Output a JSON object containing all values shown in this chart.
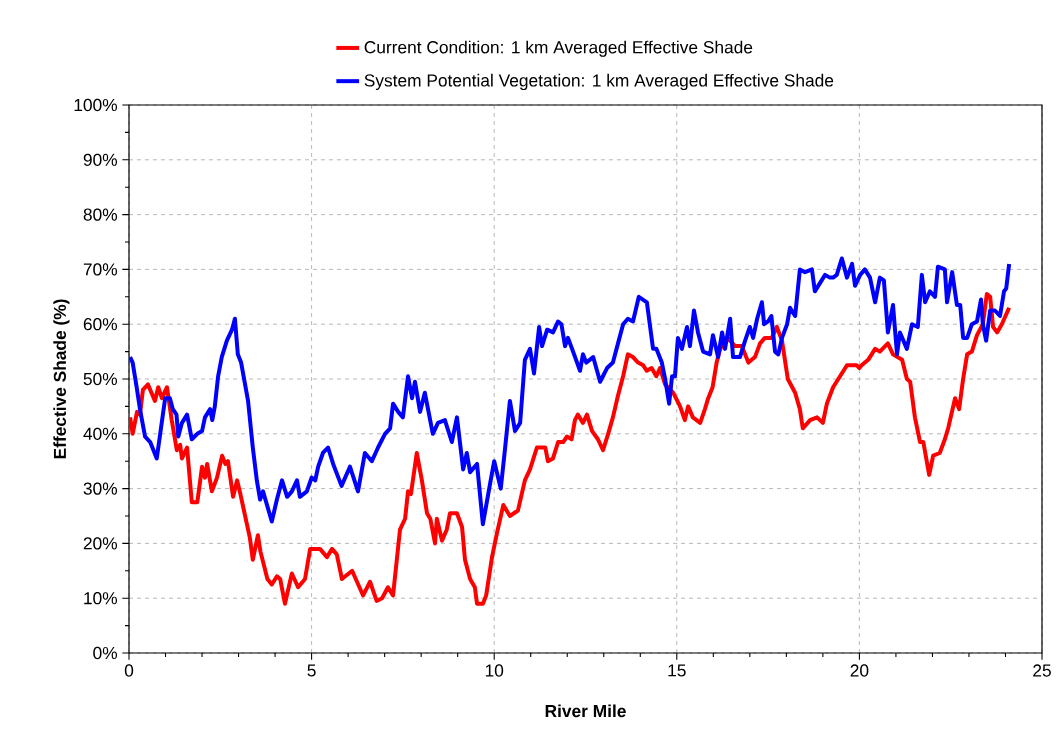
{
  "chart_data": {
    "type": "line",
    "xlabel": "River Mile",
    "ylabel": "Effective Shade (%)",
    "xlim": [
      0,
      25
    ],
    "ylim": [
      0,
      100
    ],
    "xticks": [
      0,
      5,
      10,
      15,
      20,
      25
    ],
    "yticks": [
      {
        "value": 0,
        "label": "0%"
      },
      {
        "value": 10,
        "label": "10%"
      },
      {
        "value": 20,
        "label": "20%"
      },
      {
        "value": 30,
        "label": "30%"
      },
      {
        "value": 40,
        "label": "40%"
      },
      {
        "value": 50,
        "label": "50%"
      },
      {
        "value": 60,
        "label": "60%"
      },
      {
        "value": 70,
        "label": "70%"
      },
      {
        "value": 80,
        "label": "80%"
      },
      {
        "value": 90,
        "label": "90%"
      },
      {
        "value": 100,
        "label": "100%"
      }
    ],
    "grid": true,
    "legend": "top",
    "series": [
      {
        "name": "Current Condition:  1 km Averaged Effective Shade",
        "color": "#ff0000",
        "x": [
          0.03,
          0.1,
          0.22,
          0.3,
          0.38,
          0.52,
          0.71,
          0.8,
          0.9,
          1.04,
          1.17,
          1.31,
          1.4,
          1.45,
          1.59,
          1.72,
          1.87,
          2.0,
          2.08,
          2.14,
          2.27,
          2.41,
          2.55,
          2.64,
          2.71,
          2.85,
          2.96,
          3.05,
          3.18,
          3.31,
          3.39,
          3.53,
          3.6,
          3.79,
          3.91,
          4.05,
          4.14,
          4.27,
          4.46,
          4.63,
          4.82,
          4.96,
          5.23,
          5.42,
          5.56,
          5.69,
          5.83,
          6.11,
          6.41,
          6.6,
          6.78,
          6.93,
          7.09,
          7.23,
          7.42,
          7.56,
          7.64,
          7.72,
          7.88,
          8.02,
          8.16,
          8.25,
          8.38,
          8.43,
          8.57,
          8.7,
          8.79,
          8.98,
          9.12,
          9.2,
          9.34,
          9.47,
          9.53,
          9.69,
          9.78,
          9.94,
          10.08,
          10.25,
          10.43,
          10.65,
          10.84,
          10.98,
          11.17,
          11.4,
          11.47,
          11.61,
          11.75,
          11.89,
          11.99,
          12.12,
          12.21,
          12.29,
          12.43,
          12.54,
          12.68,
          12.84,
          12.98,
          13.12,
          13.25,
          13.39,
          13.53,
          13.66,
          13.8,
          13.94,
          14.08,
          14.18,
          14.31,
          14.44,
          14.54,
          14.68,
          14.9,
          15.09,
          15.22,
          15.31,
          15.44,
          15.64,
          15.77,
          15.86,
          15.98,
          16.09,
          16.19,
          16.4,
          16.59,
          16.78,
          16.96,
          17.14,
          17.28,
          17.41,
          17.6,
          17.74,
          17.88,
          18.04,
          18.24,
          18.37,
          18.45,
          18.65,
          18.84,
          19.0,
          19.11,
          19.28,
          19.47,
          19.66,
          19.93,
          20.0,
          20.06,
          20.24,
          20.43,
          20.56,
          20.78,
          20.92,
          21.17,
          21.3,
          21.39,
          21.52,
          21.66,
          21.75,
          21.91,
          22.02,
          22.2,
          22.34,
          22.43,
          22.62,
          22.73,
          22.84,
          22.95,
          23.08,
          23.22,
          23.38,
          23.49,
          23.58,
          23.66,
          23.77,
          23.9,
          24.1
        ],
        "values": [
          43,
          40,
          44,
          43.5,
          48,
          49,
          46,
          48.5,
          46.5,
          48.5,
          42.5,
          37,
          38,
          35.5,
          37.5,
          27.5,
          27.5,
          34,
          32,
          34.5,
          29.5,
          32,
          36,
          34.5,
          35,
          28.5,
          31.5,
          29,
          25,
          21,
          17,
          21.5,
          18.5,
          13.5,
          12.5,
          14,
          13.5,
          9,
          14.5,
          12,
          13.5,
          19,
          19,
          17.5,
          19,
          18,
          13.5,
          15,
          10.5,
          13,
          9.5,
          10,
          12,
          10.5,
          22.5,
          24.5,
          29.5,
          29,
          36.5,
          31.5,
          25.5,
          24.5,
          20,
          24.5,
          20.5,
          22.5,
          25.5,
          25.5,
          23,
          17,
          13.5,
          12,
          9,
          9,
          10.5,
          17.5,
          22,
          27,
          25,
          26,
          31.5,
          33.5,
          37.5,
          37.5,
          35,
          35.5,
          38.5,
          38.5,
          39.5,
          39,
          42.5,
          43.5,
          42,
          43.5,
          40.5,
          39,
          37,
          40,
          43,
          47,
          50.5,
          54.5,
          54,
          53,
          52.5,
          51.5,
          52,
          50.5,
          52,
          49,
          47.5,
          45,
          42.5,
          45,
          43,
          42,
          44.5,
          46.5,
          48.5,
          53,
          55.5,
          57.5,
          56,
          56,
          53,
          54,
          56.5,
          57.5,
          57.5,
          59.5,
          57,
          50,
          47.5,
          44.5,
          41,
          42.5,
          43,
          42,
          45.5,
          48.5,
          50.5,
          52.5,
          52.5,
          52,
          52.5,
          53.5,
          55.5,
          55,
          56.5,
          54.5,
          53.5,
          50,
          49.5,
          43,
          38.5,
          38.5,
          32.5,
          36,
          36.5,
          39,
          41,
          46.5,
          44.5,
          50,
          54.5,
          55,
          58,
          60,
          65.5,
          65,
          59.5,
          58.5,
          60,
          63
        ]
      },
      {
        "name": "System Potential Vegetation:  1 km Averaged Effective Shade",
        "color": "#0000ff",
        "x": [
          0.03,
          0.1,
          0.21,
          0.3,
          0.44,
          0.58,
          0.76,
          0.99,
          1.12,
          1.2,
          1.3,
          1.35,
          1.45,
          1.59,
          1.72,
          1.87,
          2.0,
          2.08,
          2.22,
          2.28,
          2.35,
          2.44,
          2.54,
          2.68,
          2.82,
          2.9,
          2.98,
          3.07,
          3.26,
          3.39,
          3.5,
          3.59,
          3.67,
          3.91,
          4.05,
          4.19,
          4.33,
          4.46,
          4.6,
          4.68,
          4.87,
          5.0,
          5.1,
          5.18,
          5.31,
          5.45,
          5.59,
          5.82,
          6.05,
          6.27,
          6.46,
          6.65,
          6.82,
          7.01,
          7.15,
          7.23,
          7.37,
          7.5,
          7.64,
          7.75,
          7.83,
          7.97,
          8.1,
          8.32,
          8.46,
          8.65,
          8.84,
          8.98,
          9.15,
          9.25,
          9.34,
          9.53,
          9.69,
          9.89,
          10.0,
          10.18,
          10.3,
          10.43,
          10.57,
          10.71,
          10.84,
          10.98,
          11.09,
          11.23,
          11.31,
          11.45,
          11.61,
          11.75,
          11.84,
          11.94,
          12.02,
          12.16,
          12.35,
          12.43,
          12.52,
          12.71,
          12.9,
          13.09,
          13.25,
          13.39,
          13.53,
          13.66,
          13.8,
          13.96,
          14.18,
          14.35,
          14.44,
          14.59,
          14.68,
          14.79,
          14.87,
          14.95,
          15.03,
          15.14,
          15.28,
          15.36,
          15.47,
          15.58,
          15.72,
          15.91,
          15.99,
          16.13,
          16.24,
          16.32,
          16.46,
          16.54,
          16.73,
          16.87,
          17.0,
          17.09,
          17.2,
          17.33,
          17.39,
          17.5,
          17.59,
          17.69,
          17.78,
          17.88,
          18.02,
          18.1,
          18.24,
          18.37,
          18.51,
          18.7,
          18.78,
          18.92,
          19.06,
          19.19,
          19.28,
          19.38,
          19.52,
          19.66,
          19.8,
          19.88,
          20.02,
          20.15,
          20.29,
          20.43,
          20.56,
          20.67,
          20.78,
          20.92,
          21.03,
          21.11,
          21.3,
          21.44,
          21.6,
          21.71,
          21.8,
          21.93,
          22.07,
          22.15,
          22.34,
          22.4,
          22.54,
          22.67,
          22.76,
          22.84,
          22.95,
          23.08,
          23.22,
          23.33,
          23.38,
          23.47,
          23.58,
          23.71,
          23.85,
          23.96,
          24.02,
          24.1
        ],
        "values": [
          54,
          53,
          48.5,
          44.5,
          39.5,
          38.5,
          35.5,
          46.5,
          46.5,
          44.5,
          43.5,
          39.5,
          42,
          43.5,
          39,
          40,
          40.5,
          43,
          44.5,
          42.5,
          45,
          50.5,
          54,
          57,
          59,
          61,
          54.5,
          53,
          46,
          37.5,
          31.5,
          28,
          29.5,
          24,
          28,
          31.5,
          28.5,
          29.5,
          31.5,
          28.5,
          29.5,
          32,
          31.5,
          34,
          36.5,
          37.5,
          34.5,
          30.5,
          34,
          29.5,
          36.5,
          35,
          37.5,
          40,
          41,
          45.5,
          44,
          43,
          50.5,
          46.5,
          49.5,
          44,
          47.5,
          40,
          42,
          42.5,
          38.5,
          43,
          33.5,
          36.5,
          33,
          34.5,
          23.5,
          31,
          35,
          30,
          37.5,
          46,
          40.5,
          42,
          53.5,
          55.5,
          51,
          59.5,
          56,
          59,
          58.5,
          60.5,
          60,
          56,
          57.5,
          55,
          51.5,
          54.5,
          53,
          54,
          49.5,
          52,
          53,
          56.5,
          60,
          61,
          60.5,
          65,
          64,
          55.5,
          55.5,
          53,
          50,
          45.5,
          50.5,
          50.5,
          57.5,
          55.5,
          59.5,
          56,
          62.5,
          58.5,
          55,
          54.5,
          58,
          54,
          58.5,
          55.5,
          61,
          54,
          54,
          57,
          59.5,
          57.5,
          61,
          64,
          60,
          60.5,
          61.5,
          55,
          54.5,
          57.5,
          60,
          63,
          61.5,
          70,
          69.5,
          70,
          66,
          67.5,
          69,
          68.5,
          68.5,
          69,
          72,
          68.5,
          71,
          67,
          69,
          70,
          68.5,
          64,
          68.5,
          68,
          58.5,
          63.5,
          54.5,
          58.5,
          55.5,
          60,
          59.5,
          69,
          64,
          66,
          65,
          70.5,
          70,
          64,
          69.5,
          63.5,
          63.5,
          57.5,
          57.5,
          60,
          60.5,
          64.5,
          60,
          57,
          62.5,
          62.5,
          61.5,
          66,
          66.5,
          71
        ]
      }
    ]
  }
}
